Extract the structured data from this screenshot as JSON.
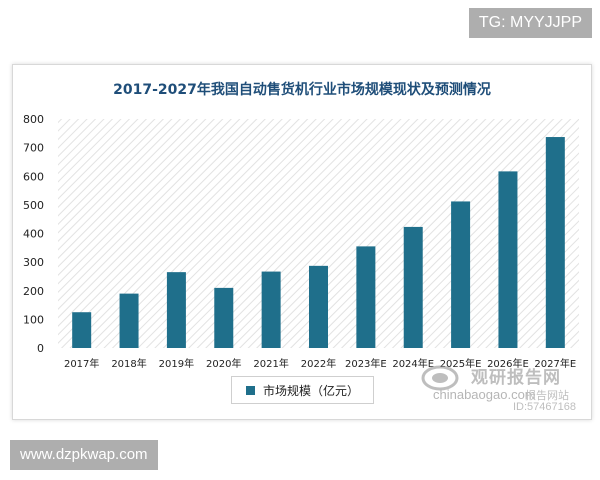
{
  "overlays": {
    "top_right_badge": "TG: MYYJJPP",
    "bottom_left_badge": "www.dzpkwap.com"
  },
  "watermark": {
    "logo_text": "观研报告网",
    "url_text": "chinabaogao.com",
    "site_text": "报告网站",
    "id_text": "ID:57467168"
  },
  "colors": {
    "bar": "#1f6f8b",
    "title": "#1f4e79",
    "hatch": "#e2e2e2"
  },
  "chart_data": {
    "type": "bar",
    "title": "2017-2027年我国自动售货机行业市场规模现状及预测情况",
    "categories": [
      "2017年",
      "2018年",
      "2019年",
      "2020年",
      "2021年",
      "2022年",
      "2023年E",
      "2024年E",
      "2025年E",
      "2026年E",
      "2027年E"
    ],
    "series": [
      {
        "name": "市场规模（亿元）",
        "values": [
          125,
          190,
          265,
          210,
          267,
          287,
          355,
          423,
          512,
          617,
          737
        ]
      }
    ],
    "ylim": [
      0,
      800
    ],
    "yticks": [
      0,
      100,
      200,
      300,
      400,
      500,
      600,
      700,
      800
    ],
    "grid": false,
    "legend_position": "bottom-center",
    "xlabel": "",
    "ylabel": ""
  }
}
